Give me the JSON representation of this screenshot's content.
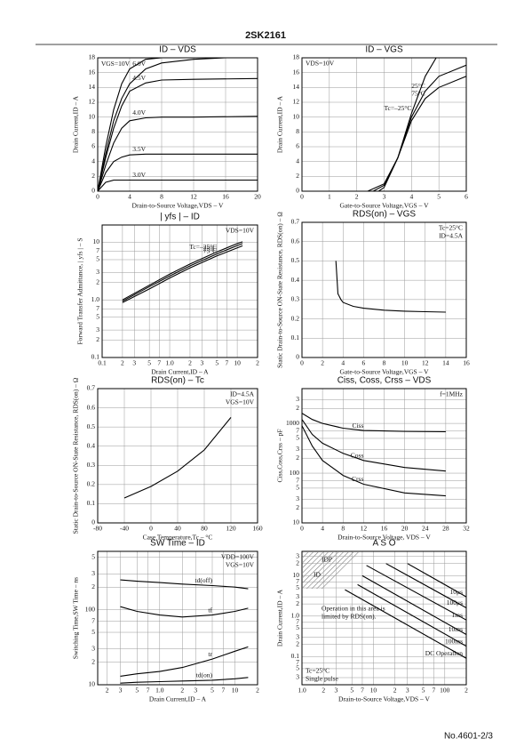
{
  "header": {
    "title": "2SK2161"
  },
  "footer": {
    "text": "No.4601-2/3"
  },
  "chart_data": [
    {
      "type": "line",
      "title": "ID – VDS",
      "xlabel": "Drain-to-Source Voltage,VDS – V",
      "ylabel": "Drain Current,ID – A",
      "xlim": [
        0,
        20
      ],
      "xticks": [
        0,
        4,
        8,
        12,
        16,
        20
      ],
      "ylim": [
        0,
        18
      ],
      "yticks": [
        0,
        2,
        4,
        6,
        8,
        10,
        12,
        14,
        16,
        18
      ],
      "grid": true,
      "series": [
        {
          "name": "VGS=10V",
          "x": [
            0,
            1,
            2,
            3,
            4,
            6,
            8
          ],
          "values": [
            0,
            6,
            11,
            14.5,
            16.5,
            17.8,
            18
          ]
        },
        {
          "name": "6.0V",
          "x": [
            0,
            1,
            2,
            3,
            4,
            6,
            8,
            12,
            16
          ],
          "values": [
            0,
            5,
            9.5,
            12.5,
            14.5,
            16.5,
            17.3,
            17.8,
            18
          ]
        },
        {
          "name": "4.5V",
          "x": [
            0,
            1,
            2,
            3,
            4,
            6,
            8,
            12,
            20
          ],
          "values": [
            0,
            4.5,
            8.5,
            11.5,
            13.5,
            14.6,
            15,
            15.1,
            15.2
          ]
        },
        {
          "name": "4.0V",
          "x": [
            0,
            1,
            2,
            3,
            4,
            6,
            8,
            12,
            20
          ],
          "values": [
            0,
            3.5,
            6.5,
            8.5,
            9.5,
            9.9,
            10,
            10,
            10.1
          ]
        },
        {
          "name": "3.5V",
          "x": [
            0,
            1,
            2,
            3,
            4,
            6,
            8,
            12,
            20
          ],
          "values": [
            0,
            2.5,
            4,
            4.6,
            4.9,
            5,
            5,
            5,
            5
          ]
        },
        {
          "name": "3.0V",
          "x": [
            0,
            1,
            2,
            3,
            4,
            6,
            8,
            12,
            20
          ],
          "values": [
            0,
            1.2,
            1.5,
            1.5,
            1.5,
            1.5,
            1.5,
            1.5,
            1.5
          ]
        }
      ]
    },
    {
      "type": "line",
      "title": "ID – VGS",
      "xlabel": "Gate-to-Source Voltage,VGS – V",
      "ylabel": "Drain Current,ID – A",
      "xlim": [
        0,
        6
      ],
      "xticks": [
        0,
        1,
        2,
        3,
        4,
        5,
        6
      ],
      "ylim": [
        0,
        18
      ],
      "yticks": [
        0,
        2,
        4,
        6,
        8,
        10,
        12,
        14,
        16,
        18
      ],
      "grid": true,
      "annotations": [
        "VDS=10V"
      ],
      "note_corner": "top-left",
      "series": [
        {
          "name": "Tc=–25°C",
          "x": [
            2.8,
            3,
            3.5,
            4,
            4.5,
            4.9
          ],
          "values": [
            0,
            0.5,
            4.5,
            10.5,
            15.5,
            18
          ]
        },
        {
          "name": "25°C",
          "x": [
            2.6,
            3,
            3.5,
            4,
            4.5,
            5,
            6
          ],
          "values": [
            0,
            0.8,
            4.5,
            10,
            13.5,
            15.5,
            17
          ]
        },
        {
          "name": "75°C",
          "x": [
            2.4,
            3,
            3.5,
            4,
            4.5,
            5,
            6
          ],
          "values": [
            0,
            1,
            4.5,
            9.5,
            12.5,
            14,
            15.5
          ]
        }
      ]
    },
    {
      "type": "line",
      "title": "| yfs | – ID",
      "xlabel": "Drain Current,ID – A",
      "ylabel": "Forward Transfer Admittance, | yfs | – S",
      "xscale": "log",
      "yscale": "log",
      "xlim": [
        0.1,
        20
      ],
      "xticks": [
        0.1,
        {
          "value": 0.2,
          "label": "2"
        },
        {
          "value": 0.3,
          "label": "3"
        },
        {
          "value": 0.5,
          "label": "5"
        },
        {
          "value": 0.7,
          "label": "7"
        },
        {
          "value": 1,
          "label": "1.0"
        },
        2,
        3,
        5,
        7,
        10,
        {
          "value": 20,
          "label": "2"
        }
      ],
      "ylim": [
        0.1,
        20
      ],
      "yticks": [
        0.1,
        {
          "value": 0.2,
          "label": "2"
        },
        {
          "value": 0.3,
          "label": "3"
        },
        {
          "value": 0.5,
          "label": "5"
        },
        {
          "value": 0.7,
          "label": "7"
        },
        {
          "value": 1,
          "label": "1.0"
        },
        2,
        3,
        5,
        7,
        10
      ],
      "grid": true,
      "annotations": [
        "VDS=10V"
      ],
      "note_corner": "top-right",
      "series": [
        {
          "name": "Tc=–25°C",
          "x": [
            0.2,
            0.5,
            1,
            2,
            5,
            10,
            12
          ],
          "values": [
            1.0,
            1.8,
            2.8,
            4.2,
            6.8,
            9.5,
            10.2
          ]
        },
        {
          "name": "25°C",
          "x": [
            0.2,
            0.5,
            1,
            2,
            5,
            10,
            12
          ],
          "values": [
            0.95,
            1.7,
            2.6,
            3.9,
            6.3,
            8.8,
            9.5
          ]
        },
        {
          "name": "75°C",
          "x": [
            0.2,
            0.5,
            1,
            2,
            5,
            10,
            12
          ],
          "values": [
            0.9,
            1.55,
            2.4,
            3.6,
            5.8,
            8,
            8.7
          ]
        }
      ]
    },
    {
      "type": "line",
      "title": "RDS(on) – VGS",
      "xlabel": "Gate-to-Source Voltage,VGS – V",
      "ylabel": "Static Drain-to-Source ON-State Resistance, RDS(on) – Ω",
      "xlim": [
        0,
        16
      ],
      "xticks": [
        0,
        2,
        4,
        6,
        8,
        10,
        12,
        14,
        16
      ],
      "ylim": [
        0,
        0.7
      ],
      "yticks": [
        0,
        0.1,
        0.2,
        0.3,
        0.4,
        0.5,
        0.6,
        0.7
      ],
      "grid": true,
      "annotations": [
        "Tc=25°C",
        "ID=4.5A"
      ],
      "note_corner": "top-right",
      "series": [
        {
          "x": [
            3.3,
            3.5,
            3.8,
            4,
            5,
            6,
            8,
            10,
            12,
            14
          ],
          "values": [
            0.5,
            0.33,
            0.3,
            0.285,
            0.265,
            0.255,
            0.245,
            0.24,
            0.237,
            0.235
          ]
        }
      ]
    },
    {
      "type": "line",
      "title": "RDS(on) – Tc",
      "xlabel": "Case Temperature,Tc – °C",
      "ylabel": "Static Drain-to-Source ON-State Resistance, RDS(on) – Ω",
      "xlim": [
        -80,
        160
      ],
      "xticks": [
        -80,
        -40,
        0,
        40,
        80,
        120,
        160
      ],
      "ylim": [
        0,
        0.7
      ],
      "yticks": [
        0,
        0.1,
        0.2,
        0.3,
        0.4,
        0.5,
        0.6,
        0.7
      ],
      "grid": true,
      "annotations": [
        "ID=4.5A",
        "VGS=10V"
      ],
      "note_corner": "top-right",
      "series": [
        {
          "x": [
            -40,
            0,
            40,
            80,
            120
          ],
          "values": [
            0.13,
            0.19,
            0.27,
            0.38,
            0.55
          ]
        }
      ]
    },
    {
      "type": "line",
      "title": "Ciss, Coss, Crss – VDS",
      "xlabel": "Drain-to-Source Voltage, VDS – V",
      "ylabel": "Ciss,Coss,Crss – pF",
      "yscale": "log",
      "xlim": [
        0,
        32
      ],
      "xticks": [
        0,
        4,
        8,
        12,
        16,
        20,
        24,
        28,
        32
      ],
      "ylim": [
        10,
        5000
      ],
      "yticks": [
        10,
        {
          "value": 20,
          "label": "2"
        },
        {
          "value": 30,
          "label": "3"
        },
        {
          "value": 50,
          "label": "5"
        },
        {
          "value": 70,
          "label": "7"
        },
        100,
        {
          "value": 200,
          "label": "2"
        },
        {
          "value": 300,
          "label": "3"
        },
        {
          "value": 500,
          "label": "5"
        },
        {
          "value": 700,
          "label": "7"
        },
        1000,
        {
          "value": 2000,
          "label": "2"
        },
        {
          "value": 3000,
          "label": "3"
        }
      ],
      "grid": true,
      "annotations": [
        "f=1MHz"
      ],
      "note_corner": "top-right",
      "series": [
        {
          "name": "Ciss",
          "x": [
            0,
            2,
            4,
            8,
            12,
            20,
            28
          ],
          "values": [
            1600,
            1200,
            1000,
            800,
            720,
            690,
            680
          ]
        },
        {
          "name": "Coss",
          "x": [
            0,
            2,
            4,
            8,
            12,
            20,
            28
          ],
          "values": [
            1200,
            600,
            400,
            250,
            180,
            130,
            110
          ]
        },
        {
          "name": "Crss",
          "x": [
            0,
            2,
            4,
            8,
            12,
            20,
            28
          ],
          "values": [
            900,
            350,
            180,
            90,
            60,
            40,
            35
          ]
        }
      ]
    },
    {
      "type": "line",
      "title": "SW Time – ID",
      "xlabel": "Drain Current,ID – A",
      "ylabel": "Switching Time,SW Time – ns",
      "xscale": "log",
      "yscale": "log",
      "xlim": [
        0.15,
        20
      ],
      "xticks": [
        {
          "value": 0.2,
          "label": "2"
        },
        {
          "value": 0.3,
          "label": "3"
        },
        {
          "value": 0.5,
          "label": "5"
        },
        {
          "value": 0.7,
          "label": "7"
        },
        {
          "value": 1,
          "label": "1.0"
        },
        2,
        3,
        5,
        7,
        10,
        {
          "value": 20,
          "label": "2"
        }
      ],
      "ylim": [
        10,
        600
      ],
      "yticks": [
        10,
        {
          "value": 20,
          "label": "2"
        },
        {
          "value": 30,
          "label": "3"
        },
        {
          "value": 50,
          "label": "5"
        },
        {
          "value": 70,
          "label": "7"
        },
        100,
        {
          "value": 200,
          "label": "2"
        },
        {
          "value": 300,
          "label": "3"
        },
        {
          "value": 500,
          "label": "5"
        }
      ],
      "grid": true,
      "annotations": [
        "VDD=100V",
        "VGS=10V"
      ],
      "note_corner": "top-right",
      "series": [
        {
          "name": "td(off)",
          "x": [
            0.3,
            0.5,
            1,
            2,
            5,
            10,
            15
          ],
          "values": [
            250,
            240,
            230,
            220,
            210,
            200,
            190
          ]
        },
        {
          "name": "tf",
          "x": [
            0.3,
            0.5,
            1,
            2,
            5,
            10,
            15
          ],
          "values": [
            110,
            95,
            85,
            80,
            85,
            95,
            105
          ]
        },
        {
          "name": "tr",
          "x": [
            0.3,
            0.5,
            1,
            2,
            5,
            10,
            15
          ],
          "values": [
            13,
            14,
            15,
            17,
            22,
            28,
            32
          ]
        },
        {
          "name": "td(on)",
          "x": [
            0.3,
            0.5,
            1,
            2,
            5,
            10,
            15
          ],
          "values": [
            10.5,
            10.8,
            11,
            11.2,
            11.5,
            12,
            12.5
          ]
        }
      ]
    },
    {
      "type": "line",
      "title": "A S O",
      "xlabel": "Drain-to-Source Voltage,VDS – V",
      "ylabel": "Drain Current,ID – A",
      "xscale": "log",
      "yscale": "log",
      "xlim": [
        1,
        200
      ],
      "xticks": [
        {
          "value": 1,
          "label": "1.0"
        },
        2,
        3,
        5,
        7,
        10,
        {
          "value": 20,
          "label": "2"
        },
        {
          "value": 30,
          "label": "3"
        },
        {
          "value": 50,
          "label": "5"
        },
        {
          "value": 70,
          "label": "7"
        },
        100,
        {
          "value": 200,
          "label": "2"
        }
      ],
      "ylim": [
        0.02,
        40
      ],
      "yticks": [
        {
          "value": 0.03,
          "label": "3"
        },
        {
          "value": 0.05,
          "label": "5"
        },
        {
          "value": 0.07,
          "label": "7"
        },
        0.1,
        {
          "value": 0.2,
          "label": "2"
        },
        {
          "value": 0.3,
          "label": "3"
        },
        {
          "value": 0.5,
          "label": "5"
        },
        {
          "value": 0.7,
          "label": "7"
        },
        {
          "value": 1,
          "label": "1.0"
        },
        2,
        3,
        5,
        7,
        10,
        {
          "value": 20,
          "label": "2"
        },
        {
          "value": 30,
          "label": "3"
        }
      ],
      "grid": true,
      "annotations": [
        "Tc=25°C",
        "Single pulse"
      ],
      "note_corner": "bottom-left",
      "region_labels": [
        "IDP",
        "ID",
        "Operation in this area is",
        "limited by RDS(on)."
      ],
      "series": [
        {
          "name": "10μs",
          "x": [
            30,
            200
          ],
          "values": [
            20,
            3
          ]
        },
        {
          "name": "100μs",
          "x": [
            15,
            200
          ],
          "values": [
            20,
            1.6
          ]
        },
        {
          "name": "1ms",
          "x": [
            8,
            200
          ],
          "values": [
            18,
            0.8
          ]
        },
        {
          "name": "10ms",
          "x": [
            7,
            200
          ],
          "values": [
            10,
            0.35
          ]
        },
        {
          "name": "100ms",
          "x": [
            6,
            200
          ],
          "values": [
            6,
            0.18
          ]
        },
        {
          "name": "DC Operation",
          "x": [
            4,
            200
          ],
          "values": [
            4.5,
            0.09
          ]
        }
      ]
    }
  ]
}
